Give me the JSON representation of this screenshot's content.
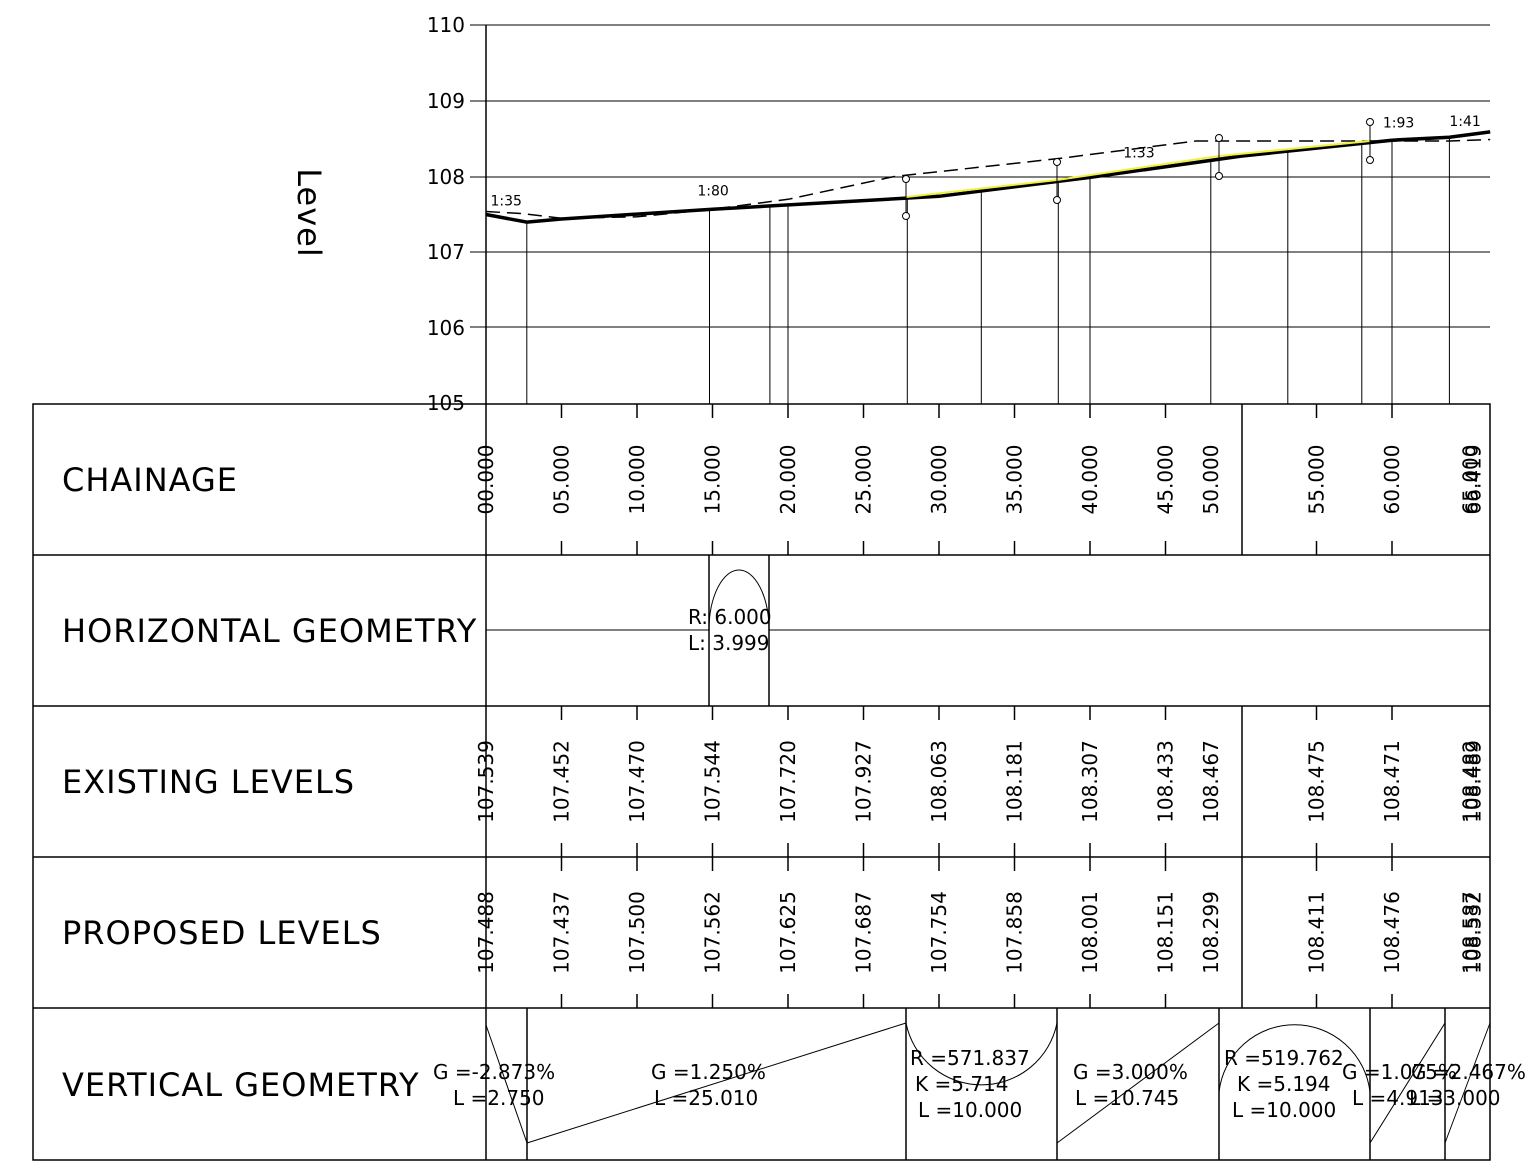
{
  "axis": {
    "ylabel": "Level",
    "ylim": [
      105,
      110
    ],
    "yticks": [
      "105",
      "106",
      "107",
      "108",
      "109",
      "110"
    ]
  },
  "rows": {
    "chainage": "CHAINAGE",
    "horizontal": "HORIZONTAL  GEOMETRY",
    "existing": "EXISTING  LEVELS",
    "proposed": "PROPOSED  LEVELS",
    "vertical": "VERTICAL  GEOMETRY"
  },
  "chart_data": {
    "type": "line",
    "ylabel": "Level",
    "ylim": [
      105,
      110
    ],
    "x_range": [
      0,
      66.5
    ],
    "stations": [
      {
        "ch": 0.0,
        "label": "00.000",
        "existing": "107.539",
        "proposed": "107.488",
        "tick": false
      },
      {
        "ch": 5.0,
        "label": "05.000",
        "existing": "107.452",
        "proposed": "107.437",
        "tick": true
      },
      {
        "ch": 10.0,
        "label": "10.000",
        "existing": "107.470",
        "proposed": "107.500",
        "tick": true
      },
      {
        "ch": 15.0,
        "label": "15.000",
        "existing": "107.544",
        "proposed": "107.562",
        "tick": true
      },
      {
        "ch": 20.0,
        "label": "20.000",
        "existing": "107.720",
        "proposed": "107.625",
        "tick": true
      },
      {
        "ch": 25.0,
        "label": "25.000",
        "existing": "107.927",
        "proposed": "107.687",
        "tick": true
      },
      {
        "ch": 30.0,
        "label": "30.000",
        "existing": "108.063",
        "proposed": "107.754",
        "tick": true
      },
      {
        "ch": 35.0,
        "label": "35.000",
        "existing": "108.181",
        "proposed": "107.858",
        "tick": true
      },
      {
        "ch": 40.0,
        "label": "40.000",
        "existing": "108.307",
        "proposed": "108.001",
        "tick": true
      },
      {
        "ch": 45.0,
        "label": "45.000",
        "existing": "108.433",
        "proposed": "108.151",
        "tick": true
      },
      {
        "ch": 48.0,
        "label": "50.000",
        "existing": "108.467",
        "proposed": "108.299",
        "tick": false
      },
      {
        "ch": 55.0,
        "label": "55.000",
        "existing": "108.475",
        "proposed": "108.411",
        "tick": true
      },
      {
        "ch": 60.0,
        "label": "60.000",
        "existing": "108.471",
        "proposed": "108.476",
        "tick": true
      },
      {
        "ch": 65.2,
        "label": "65.000",
        "existing": "108.482",
        "proposed": "108.587",
        "tick": false
      },
      {
        "ch": 65.4,
        "label": "66.419",
        "existing": "108.489",
        "proposed": "108.532",
        "tick": false
      }
    ],
    "proposed_profile": [
      [
        0,
        107.5
      ],
      [
        2.7,
        107.4
      ],
      [
        5,
        107.44
      ],
      [
        15,
        107.57
      ],
      [
        30,
        107.74
      ],
      [
        40,
        107.99
      ],
      [
        50,
        108.27
      ],
      [
        60,
        108.48
      ],
      [
        63.8,
        108.52
      ],
      [
        66.5,
        108.59
      ]
    ],
    "existing_profile": [
      [
        0,
        107.54
      ],
      [
        2.5,
        107.51
      ],
      [
        5,
        107.45
      ],
      [
        10,
        107.47
      ],
      [
        15,
        107.57
      ],
      [
        20,
        107.7
      ],
      [
        27,
        108.0
      ],
      [
        38,
        108.24
      ],
      [
        47,
        108.47
      ],
      [
        60,
        108.47
      ],
      [
        63.8,
        108.47
      ],
      [
        66.5,
        108.49
      ]
    ],
    "grade_labels": [
      {
        "text": "1:35",
        "ch": 0.3,
        "level": 107.62
      },
      {
        "text": "1:80",
        "ch": 14.0,
        "level": 107.75
      },
      {
        "text": "1:33",
        "ch": 42.2,
        "level": 108.25
      },
      {
        "text": "1:93",
        "ch": 59.4,
        "level": 108.65
      },
      {
        "text": "1:41",
        "ch": 63.8,
        "level": 108.67
      }
    ]
  },
  "horizontal_geometry": {
    "radius": "R:  6.000",
    "length": "L:  3.999"
  },
  "vertical_geometry": [
    {
      "line1": "G  =-2.873%",
      "line2": "L  =2.750"
    },
    {
      "line1": "G  =1.250%",
      "line2": "L  =25.010"
    },
    {
      "line1": "R  =571.837",
      "line2": "K  =5.714",
      "line3": "L  =10.000"
    },
    {
      "line1": "G  =3.000%",
      "line2": "L  =10.745"
    },
    {
      "line1": "R  =519.762",
      "line2": "K  =5.194",
      "line3": "L  =10.000"
    },
    {
      "line1": "G  =1.075%",
      "line2": "L  =4.913"
    },
    {
      "line1": "G  =2.467%",
      "line2": "L  =3.000"
    }
  ]
}
